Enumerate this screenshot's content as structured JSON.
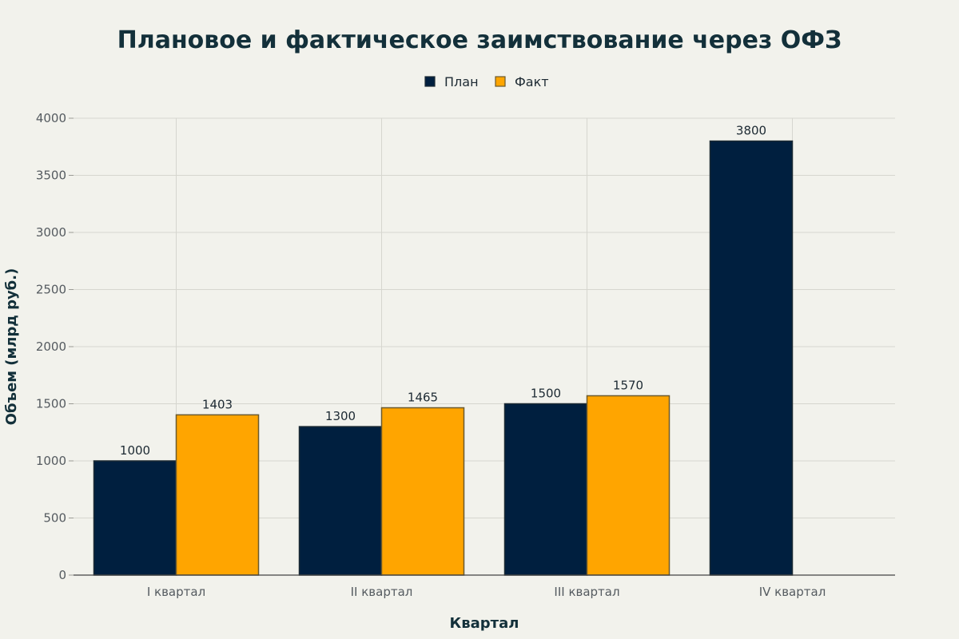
{
  "chart_data": {
    "type": "bar",
    "title": "Плановое и фактическое заимствование через ОФЗ",
    "xlabel": "Квартал",
    "ylabel": "Объем (млрд руб.)",
    "categories": [
      "I квартал",
      "II квартал",
      "III квартал",
      "IV квартал"
    ],
    "series": [
      {
        "name": "План",
        "color": "#001f3f",
        "values": [
          1000,
          1300,
          1500,
          3800
        ]
      },
      {
        "name": "Факт",
        "color": "#ffa500",
        "values": [
          1403,
          1465,
          1570,
          null
        ]
      }
    ],
    "ylim": [
      0,
      4000
    ],
    "yticks": [
      0,
      500,
      1000,
      1500,
      2000,
      2500,
      3000,
      3500,
      4000
    ],
    "grid": true,
    "legend_position": "top-center"
  }
}
